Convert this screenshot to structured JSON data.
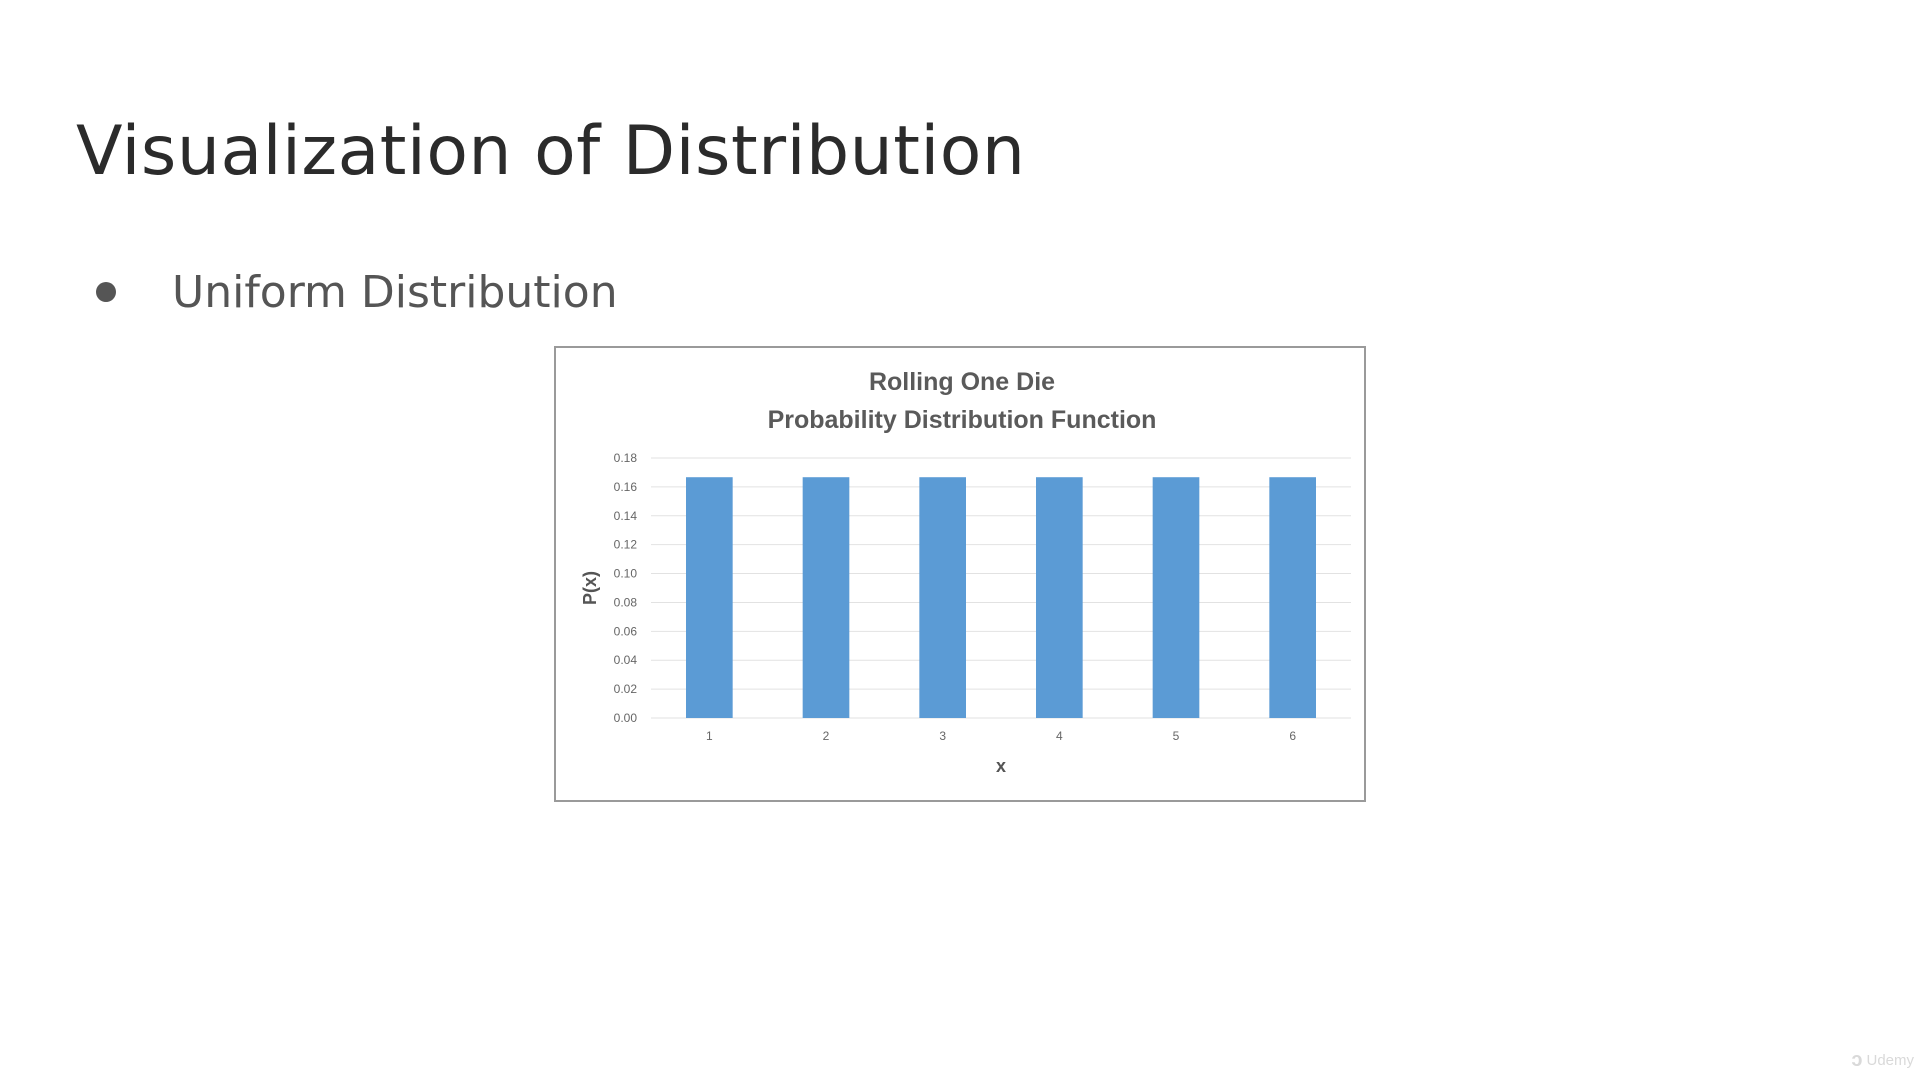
{
  "slide": {
    "title": "Visualization of Distribution",
    "bullet": "Uniform Distribution"
  },
  "chart_data": {
    "type": "bar",
    "title": [
      "Rolling One Die",
      "Probability Distribution Function"
    ],
    "xlabel": "x",
    "ylabel": "P(x)",
    "categories": [
      "1",
      "2",
      "3",
      "4",
      "5",
      "6"
    ],
    "values": [
      0.1667,
      0.1667,
      0.1667,
      0.1667,
      0.1667,
      0.1667
    ],
    "ylim": [
      0,
      0.18
    ],
    "yticks": [
      "0.00",
      "0.02",
      "0.04",
      "0.06",
      "0.08",
      "0.10",
      "0.12",
      "0.14",
      "0.16",
      "0.18"
    ],
    "grid": true,
    "legend": "none",
    "bar_color": "#5b9bd5"
  },
  "watermark": {
    "text": "Udemy"
  }
}
